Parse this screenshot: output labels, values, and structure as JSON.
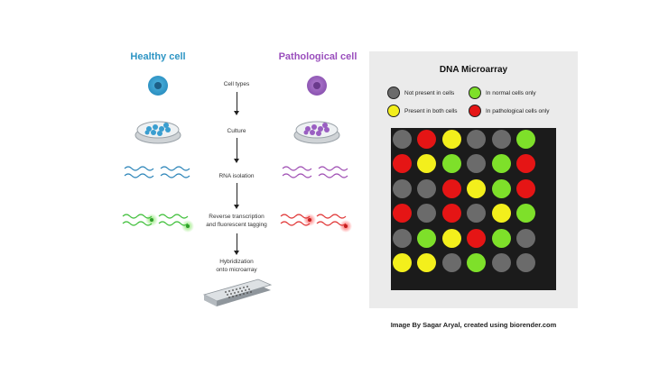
{
  "titles": {
    "healthy": "Healthy cell",
    "pathological": "Pathological cell"
  },
  "steps": {
    "cell_types": "Cell types",
    "culture": "Culture",
    "rna": "RNA isolation",
    "reverse_line1": "Reverse transcription",
    "reverse_line2": "and fluorescent tagging",
    "hyb_line1": "Hybridization",
    "hyb_line2": "onto microarray"
  },
  "microarray": {
    "title": "DNA Microarray",
    "legend": [
      {
        "label": "Not present in cells",
        "color": "#6b6b6b"
      },
      {
        "label": "In normal cells only",
        "color": "#7ee02a"
      },
      {
        "label": "Present in both cells",
        "color": "#f3ef1c"
      },
      {
        "label": "In pathological cells only",
        "color": "#e51515"
      }
    ],
    "colors": {
      "G": "#6b6b6b",
      "R": "#e51515",
      "Y": "#f3ef1c",
      "L": "#7ee02a"
    },
    "spots": [
      [
        "G",
        "R",
        "Y",
        "G",
        "G",
        "L"
      ],
      [
        "R",
        "Y",
        "L",
        "G",
        "L",
        "R"
      ],
      [
        "G",
        "G",
        "R",
        "Y",
        "L",
        "R"
      ],
      [
        "R",
        "G",
        "R",
        "G",
        "Y",
        "L"
      ],
      [
        "G",
        "L",
        "Y",
        "R",
        "L",
        "G"
      ],
      [
        "Y",
        "Y",
        "G",
        "L",
        "G",
        "G"
      ]
    ]
  },
  "credit": "Image By Sagar Aryal, created using biorender.com",
  "palette": {
    "healthy": "#2e95c4",
    "pathological": "#9a4fbd",
    "tag_green": "#5fd33a",
    "tag_red": "#e03535"
  }
}
